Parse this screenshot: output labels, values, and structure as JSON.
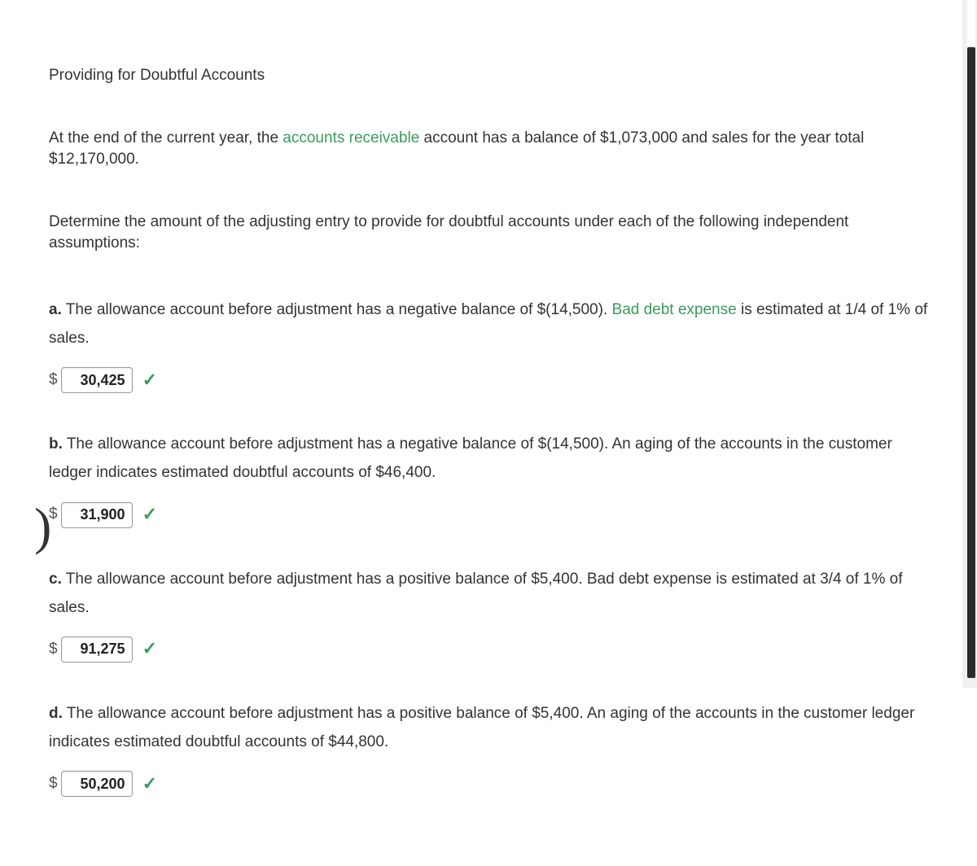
{
  "title": "Providing for Doubtful Accounts",
  "intro": {
    "pre": "At the end of the current year, the ",
    "link": "accounts receivable",
    "post": " account has a balance of $1,073,000 and sales for the year total $12,170,000."
  },
  "instruction": "Determine the amount of the adjusting entry to provide for doubtful accounts under each of the following independent assumptions:",
  "questions": {
    "a": {
      "letter": "a.",
      "pre": "The allowance account before adjustment has a negative balance of $(14,500). ",
      "link": "Bad debt expense",
      "post": " is estimated at 1/4 of 1% of sales.",
      "dollar": "$",
      "value": "30,425"
    },
    "b": {
      "letter": "b.",
      "text": "The allowance account before adjustment has a negative balance of $(14,500). An aging of the accounts in the customer ledger indicates estimated doubtful accounts of $46,400.",
      "dollar": "$",
      "value": "31,900"
    },
    "c": {
      "letter": "c.",
      "text": "The allowance account before adjustment has a positive balance of $5,400. Bad debt expense is estimated at 3/4 of 1% of sales.",
      "dollar": "$",
      "value": "91,275"
    },
    "d": {
      "letter": "d.",
      "text": "The allowance account before adjustment has a positive balance of $5,400. An aging of the accounts in the customer ledger indicates estimated doubtful accounts of $44,800.",
      "dollar": "$",
      "value": "50,200"
    }
  },
  "paren": ")",
  "checkmark": "✓",
  "colors": {
    "link": "#3a9b5c",
    "check": "#3a9b5c"
  }
}
